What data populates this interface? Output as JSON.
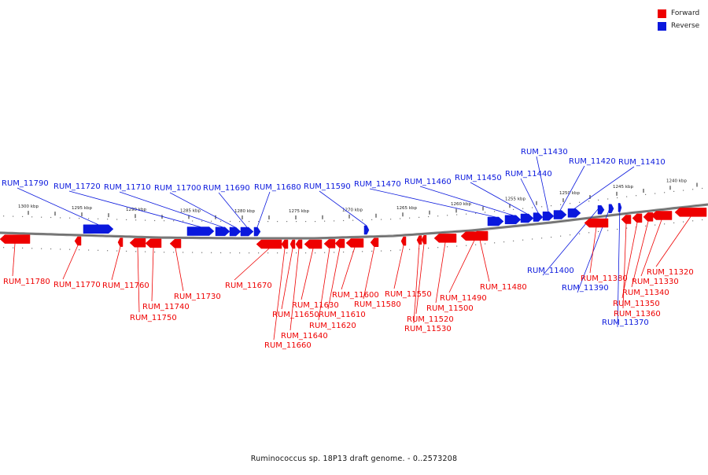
{
  "legend": {
    "forward_label": "Forward",
    "reverse_label": "Reverse",
    "forward_color": "#ee0000",
    "reverse_color": "#0a18dd"
  },
  "caption": "Ruminococcus sp. 18P13 draft genome. - 0..2573208",
  "axis": {
    "ticks": [
      "1300 kbp",
      "1295 kbp",
      "1290 kbp",
      "1285 kbp",
      "1280 kbp",
      "1275 kbp",
      "1270 kbp",
      "1265 kbp",
      "1260 kbp",
      "1255 kbp",
      "1250 kbp",
      "1245 kbp",
      "1240 kbp"
    ]
  },
  "genes": [
    {
      "id": "RUM_11790",
      "strand": "reverse"
    },
    {
      "id": "RUM_11780",
      "strand": "forward"
    },
    {
      "id": "RUM_11770",
      "strand": "forward"
    },
    {
      "id": "RUM_11760",
      "strand": "forward"
    },
    {
      "id": "RUM_11750",
      "strand": "forward"
    },
    {
      "id": "RUM_11740",
      "strand": "forward"
    },
    {
      "id": "RUM_11730",
      "strand": "forward"
    },
    {
      "id": "RUM_11720",
      "strand": "reverse"
    },
    {
      "id": "RUM_11710",
      "strand": "reverse"
    },
    {
      "id": "RUM_11700",
      "strand": "reverse"
    },
    {
      "id": "RUM_11690",
      "strand": "reverse"
    },
    {
      "id": "RUM_11680",
      "strand": "reverse"
    },
    {
      "id": "RUM_11670",
      "strand": "forward"
    },
    {
      "id": "RUM_11660",
      "strand": "forward"
    },
    {
      "id": "RUM_11650",
      "strand": "forward"
    },
    {
      "id": "RUM_11640",
      "strand": "forward"
    },
    {
      "id": "RUM_11630",
      "strand": "forward"
    },
    {
      "id": "RUM_11620",
      "strand": "forward"
    },
    {
      "id": "RUM_11610",
      "strand": "forward"
    },
    {
      "id": "RUM_11600",
      "strand": "forward"
    },
    {
      "id": "RUM_11590",
      "strand": "reverse"
    },
    {
      "id": "RUM_11580",
      "strand": "forward"
    },
    {
      "id": "RUM_11550",
      "strand": "forward"
    },
    {
      "id": "RUM_11530",
      "strand": "forward"
    },
    {
      "id": "RUM_11520",
      "strand": "forward"
    },
    {
      "id": "RUM_11500",
      "strand": "forward"
    },
    {
      "id": "RUM_11490",
      "strand": "forward"
    },
    {
      "id": "RUM_11480",
      "strand": "forward"
    },
    {
      "id": "RUM_11470",
      "strand": "reverse"
    },
    {
      "id": "RUM_11460",
      "strand": "reverse"
    },
    {
      "id": "RUM_11450",
      "strand": "reverse"
    },
    {
      "id": "RUM_11440",
      "strand": "reverse"
    },
    {
      "id": "RUM_11430",
      "strand": "reverse"
    },
    {
      "id": "RUM_11420",
      "strand": "reverse"
    },
    {
      "id": "RUM_11410",
      "strand": "reverse"
    },
    {
      "id": "RUM_11400",
      "strand": "reverse"
    },
    {
      "id": "RUM_11390",
      "strand": "reverse"
    },
    {
      "id": "RUM_11380",
      "strand": "forward"
    },
    {
      "id": "RUM_11370",
      "strand": "reverse"
    },
    {
      "id": "RUM_11360",
      "strand": "forward"
    },
    {
      "id": "RUM_11350",
      "strand": "forward"
    },
    {
      "id": "RUM_11340",
      "strand": "forward"
    },
    {
      "id": "RUM_11330",
      "strand": "forward"
    },
    {
      "id": "RUM_11320",
      "strand": "forward"
    }
  ]
}
